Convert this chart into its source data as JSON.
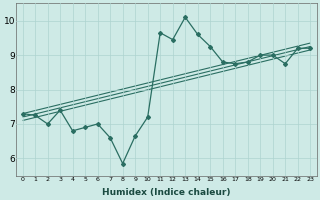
{
  "xlabel": "Humidex (Indice chaleur)",
  "xlim": [
    -0.5,
    23.5
  ],
  "ylim": [
    5.5,
    10.5
  ],
  "yticks": [
    6,
    7,
    8,
    9,
    10
  ],
  "xticks": [
    0,
    1,
    2,
    3,
    4,
    5,
    6,
    7,
    8,
    9,
    10,
    11,
    12,
    13,
    14,
    15,
    16,
    17,
    18,
    19,
    20,
    21,
    22,
    23
  ],
  "background_color": "#ceeae6",
  "grid_color": "#aed4d0",
  "line_color": "#2a6e62",
  "x": [
    0,
    1,
    2,
    3,
    4,
    5,
    6,
    7,
    8,
    9,
    10,
    11,
    12,
    13,
    14,
    15,
    16,
    17,
    18,
    19,
    20,
    21,
    22,
    23
  ],
  "y_main": [
    7.3,
    7.25,
    7.0,
    7.4,
    6.8,
    6.9,
    7.0,
    6.6,
    5.85,
    6.65,
    7.2,
    9.65,
    9.45,
    10.1,
    9.6,
    9.25,
    8.8,
    8.75,
    8.8,
    9.0,
    9.0,
    8.75,
    9.2,
    9.2
  ],
  "reg_lines": [
    {
      "x0": 0,
      "y0": 7.3,
      "x1": 23,
      "y1": 9.35
    },
    {
      "x0": 0,
      "y0": 7.2,
      "x1": 23,
      "y1": 9.25
    },
    {
      "x0": 0,
      "y0": 7.1,
      "x1": 23,
      "y1": 9.15
    }
  ]
}
